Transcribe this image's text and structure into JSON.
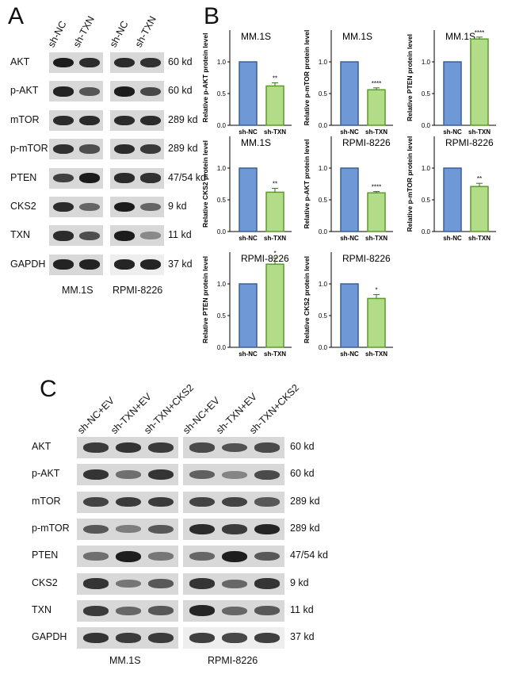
{
  "panels": {
    "A": "A",
    "B": "B",
    "C": "C"
  },
  "panelA": {
    "lanes_left": [
      "sh-NC",
      "sh-TXN"
    ],
    "lanes_right": [
      "sh-NC",
      "sh-TXN"
    ],
    "proteins": [
      "AKT",
      "p-AKT",
      "mTOR",
      "p-mTOR",
      "PTEN",
      "CKS2",
      "TXN",
      "GAPDH"
    ],
    "sizes": [
      "60 kd",
      "60 kd",
      "289 kd",
      "289 kd",
      "47/54 kd",
      "9 kd",
      "11 kd",
      "37 kd"
    ],
    "cell_left": "MM.1S",
    "cell_right": "RPMI-8226"
  },
  "panelC": {
    "lanes_left": [
      "sh-NC+EV",
      "sh-TXN+EV",
      "sh-TXN+CKS2"
    ],
    "lanes_right": [
      "sh-NC+EV",
      "sh-TXN+EV",
      "sh-TXN+CKS2"
    ],
    "proteins": [
      "AKT",
      "p-AKT",
      "mTOR",
      "p-mTOR",
      "PTEN",
      "CKS2",
      "TXN",
      "GAPDH"
    ],
    "sizes": [
      "60 kd",
      "60 kd",
      "289 kd",
      "289 kd",
      "47/54 kd",
      "9 kd",
      "11 kd",
      "37 kd"
    ],
    "cell_left": "MM.1S",
    "cell_right": "RPMI-8226"
  },
  "colors": {
    "nc": "#6f98d6",
    "txn": "#b3dc88",
    "band": "#1e1e1e"
  },
  "chart_data": [
    {
      "type": "bar",
      "title": "MM.1S",
      "ylabel": "Relative p-AKT protein level",
      "categories": [
        "sh-NC",
        "sh-TXN"
      ],
      "values": [
        1.0,
        0.62
      ],
      "errors": [
        0,
        0.05
      ],
      "sig": "**",
      "ylim": [
        0,
        1.5
      ],
      "yticks": [
        "0.0",
        "0.5",
        "1.0"
      ]
    },
    {
      "type": "bar",
      "title": "MM.1S",
      "ylabel": "Relative p-mTOR protein level",
      "categories": [
        "sh-NC",
        "sh-TXN"
      ],
      "values": [
        1.0,
        0.56
      ],
      "errors": [
        0,
        0.03
      ],
      "sig": "****",
      "ylim": [
        0,
        1.5
      ],
      "yticks": [
        "0.0",
        "0.5",
        "1.0"
      ]
    },
    {
      "type": "bar",
      "title": "MM.1S",
      "ylabel": "Relative PTEN protein level",
      "categories": [
        "sh-NC",
        "sh-TXN"
      ],
      "values": [
        1.0,
        1.36
      ],
      "errors": [
        0,
        0.03
      ],
      "sig": "****",
      "ylim": [
        0,
        1.5
      ],
      "yticks": [
        "0.0",
        "0.5",
        "1.0"
      ]
    },
    {
      "type": "bar",
      "title": "MM.1S",
      "ylabel": "Relative CKS2 protein level",
      "categories": [
        "sh-NC",
        "sh-TXN"
      ],
      "values": [
        1.0,
        0.62
      ],
      "errors": [
        0,
        0.06
      ],
      "sig": "**",
      "ylim": [
        0,
        1.5
      ],
      "yticks": [
        "0.0",
        "0.5",
        "1.0"
      ]
    },
    {
      "type": "bar",
      "title": "RPMI-8226",
      "ylabel": "Relative p-AKT protein level",
      "categories": [
        "sh-NC",
        "sh-TXN"
      ],
      "values": [
        1.0,
        0.61
      ],
      "errors": [
        0,
        0.02
      ],
      "sig": "****",
      "ylim": [
        0,
        1.5
      ],
      "yticks": [
        "0.0",
        "0.5",
        "1.0"
      ]
    },
    {
      "type": "bar",
      "title": "RPMI-8226",
      "ylabel": "Relative p-mTOR protein level",
      "categories": [
        "sh-NC",
        "sh-TXN"
      ],
      "values": [
        1.0,
        0.71
      ],
      "errors": [
        0,
        0.05
      ],
      "sig": "**",
      "ylim": [
        0,
        1.5
      ],
      "yticks": [
        "0.0",
        "0.5",
        "1.0"
      ]
    },
    {
      "type": "bar",
      "title": "RPMI-8226",
      "ylabel": "Relative PTEN protein level",
      "categories": [
        "sh-NC",
        "sh-TXN"
      ],
      "values": [
        1.0,
        1.31
      ],
      "errors": [
        0,
        0.1
      ],
      "sig": "*",
      "ylim": [
        0,
        1.5
      ],
      "yticks": [
        "0.0",
        "0.5",
        "1.0"
      ]
    },
    {
      "type": "bar",
      "title": "RPMI-8226",
      "ylabel": "Relative CKS2 protein level",
      "categories": [
        "sh-NC",
        "sh-TXN"
      ],
      "values": [
        1.0,
        0.77
      ],
      "errors": [
        0,
        0.06
      ],
      "sig": "*",
      "ylim": [
        0,
        1.5
      ],
      "yticks": [
        "0.0",
        "0.5",
        "1.0"
      ]
    }
  ]
}
